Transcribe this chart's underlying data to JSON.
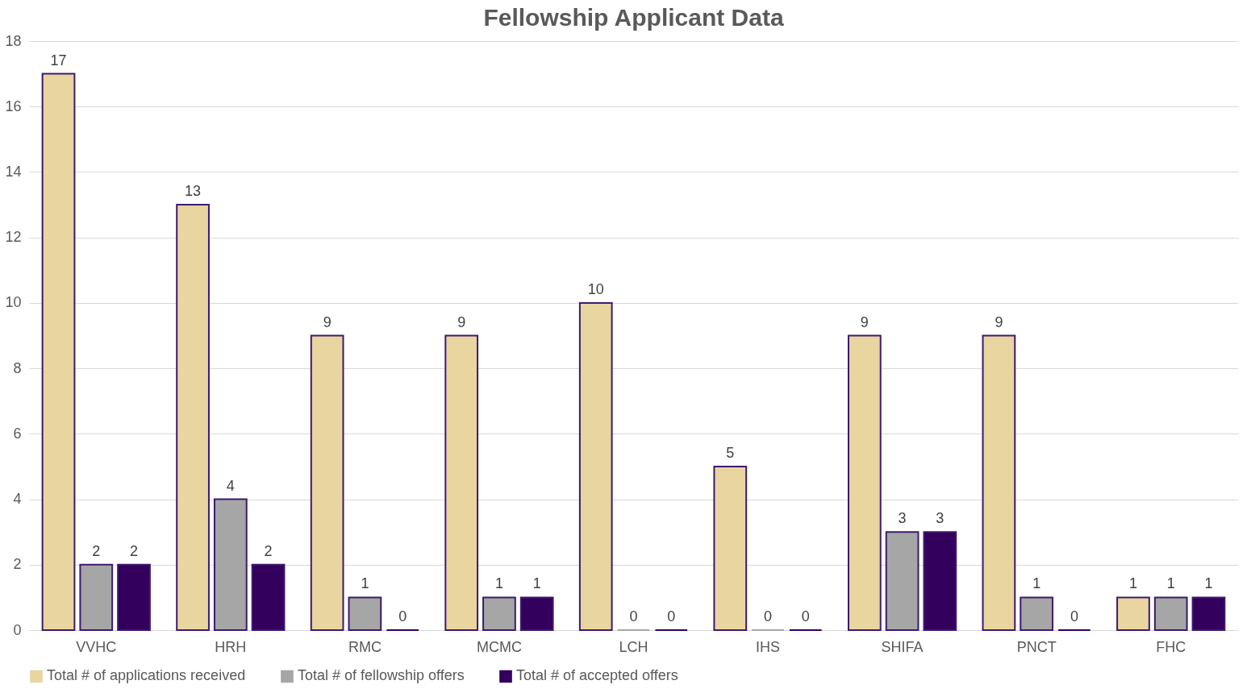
{
  "chart_data": {
    "type": "bar",
    "title": "Fellowship Applicant Data",
    "categories": [
      "VVHC",
      "HRH",
      "RMC",
      "MCMC",
      "LCH",
      "IHS",
      "SHIFA",
      "PNCT",
      "FHC"
    ],
    "series": [
      {
        "name": "Total # of applications received",
        "color": "#e8d5a0",
        "values": [
          17,
          13,
          9,
          9,
          10,
          5,
          9,
          9,
          1
        ]
      },
      {
        "name": "Total # of fellowship offers",
        "color": "#a6a6a6",
        "values": [
          2,
          4,
          1,
          1,
          0,
          0,
          3,
          1,
          1
        ]
      },
      {
        "name": "Total # of accepted offers",
        "color": "#33005e",
        "values": [
          2,
          2,
          0,
          1,
          0,
          0,
          3,
          0,
          1
        ]
      }
    ],
    "ylim": [
      0,
      18
    ],
    "yticks": [
      0,
      2,
      4,
      6,
      8,
      10,
      12,
      14,
      16,
      18
    ],
    "grid": "y",
    "legend": "bottom",
    "data_labels": true
  }
}
